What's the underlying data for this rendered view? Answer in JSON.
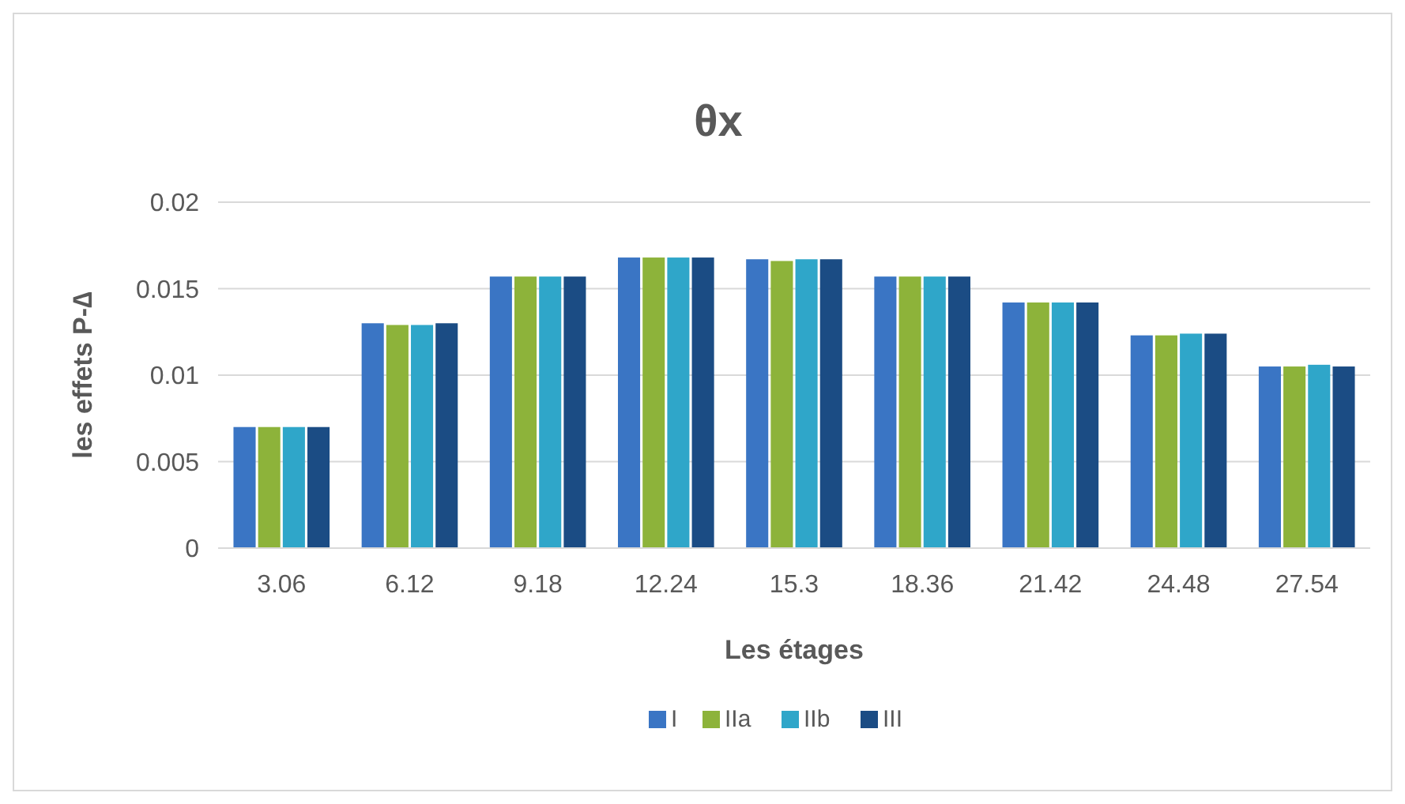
{
  "chart_data": {
    "type": "bar",
    "title": "θx",
    "xlabel": "Les étages",
    "ylabel": "les effets P-∆",
    "categories": [
      "3.06",
      "6.12",
      "9.18",
      "12.24",
      "15.3",
      "18.36",
      "21.42",
      "24.48",
      "27.54"
    ],
    "series": [
      {
        "name": "I",
        "color": "#3a75c4",
        "values": [
          0.007,
          0.013,
          0.0157,
          0.0168,
          0.0167,
          0.0157,
          0.0142,
          0.0123,
          0.0105
        ]
      },
      {
        "name": "IIa",
        "color": "#8db33a",
        "values": [
          0.007,
          0.0129,
          0.0157,
          0.0168,
          0.0166,
          0.0157,
          0.0142,
          0.0123,
          0.0105
        ]
      },
      {
        "name": "IIb",
        "color": "#2fa6c9",
        "values": [
          0.007,
          0.0129,
          0.0157,
          0.0168,
          0.0167,
          0.0157,
          0.0142,
          0.0124,
          0.0106
        ]
      },
      {
        "name": "III",
        "color": "#1b4c84",
        "values": [
          0.007,
          0.013,
          0.0157,
          0.0168,
          0.0167,
          0.0157,
          0.0142,
          0.0124,
          0.0105
        ]
      }
    ],
    "ylim": [
      0,
      0.02
    ],
    "yticks": [
      0,
      0.005,
      0.01,
      0.015,
      0.02
    ],
    "grid": "y",
    "legend": "bottom"
  }
}
